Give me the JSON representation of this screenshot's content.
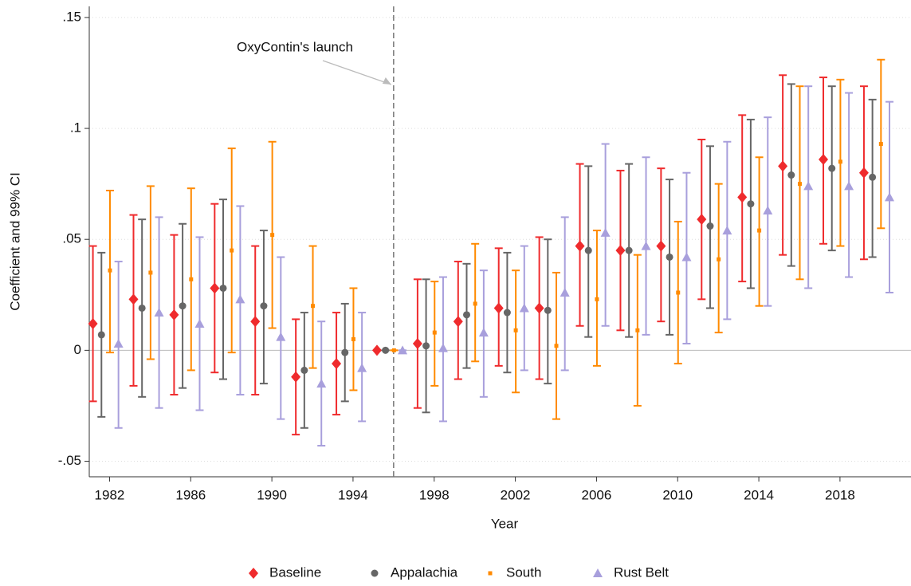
{
  "chart_data": {
    "type": "coefplot",
    "annotation": "OxyContin's launch",
    "annotation_x": 1996,
    "x_label": "Year",
    "y_label": "Coefficient and 99% CI",
    "x": [
      1982,
      1984,
      1986,
      1988,
      1990,
      1992,
      1994,
      1996,
      1998,
      2000,
      2002,
      2004,
      2006,
      2008,
      2010,
      2012,
      2014,
      2016,
      2018,
      2020
    ],
    "xlim": [
      1981,
      2021.5
    ],
    "xticks": [
      1982,
      1986,
      1990,
      1994,
      1998,
      2002,
      2006,
      2010,
      2014,
      2018
    ],
    "ylim": [
      -0.057,
      0.155
    ],
    "yticks": [
      {
        "value": -0.05,
        "label": "-.05"
      },
      0,
      {
        "value": 0.05,
        "label": ".05"
      },
      {
        "value": 0.1,
        "label": ".1"
      },
      {
        "value": 0.15,
        "label": ".15"
      }
    ],
    "grid": true,
    "legend": "bottom",
    "series": [
      {
        "name": "Baseline",
        "color": "#ef2b2d",
        "marker": "diamond",
        "values": [
          0.012,
          0.023,
          0.016,
          0.028,
          0.013,
          -0.012,
          -0.006,
          0,
          0.003,
          0.013,
          0.019,
          0.019,
          0.047,
          0.045,
          0.047,
          0.059,
          0.069,
          0.083,
          0.086,
          0.08
        ],
        "lower": [
          -0.023,
          -0.016,
          -0.02,
          -0.01,
          -0.02,
          -0.038,
          -0.029,
          0,
          -0.026,
          -0.013,
          -0.007,
          -0.013,
          0.011,
          0.009,
          0.013,
          0.023,
          0.031,
          0.043,
          0.048,
          0.041
        ],
        "upper": [
          0.047,
          0.061,
          0.052,
          0.066,
          0.047,
          0.014,
          0.017,
          0,
          0.032,
          0.04,
          0.046,
          0.051,
          0.084,
          0.081,
          0.082,
          0.095,
          0.106,
          0.124,
          0.123,
          0.119
        ]
      },
      {
        "name": "Appalachia",
        "color": "#666666",
        "marker": "circle",
        "values": [
          0.007,
          0.019,
          0.02,
          0.028,
          0.02,
          -0.009,
          -0.001,
          0,
          0.002,
          0.016,
          0.017,
          0.018,
          0.045,
          0.045,
          0.042,
          0.056,
          0.066,
          0.079,
          0.082,
          0.078
        ],
        "lower": [
          -0.03,
          -0.021,
          -0.017,
          -0.013,
          -0.015,
          -0.035,
          -0.023,
          0,
          -0.028,
          -0.008,
          -0.01,
          -0.015,
          0.006,
          0.006,
          0.007,
          0.019,
          0.028,
          0.038,
          0.045,
          0.042
        ],
        "upper": [
          0.044,
          0.059,
          0.057,
          0.068,
          0.054,
          0.017,
          0.021,
          0,
          0.032,
          0.039,
          0.044,
          0.05,
          0.083,
          0.084,
          0.077,
          0.092,
          0.104,
          0.12,
          0.119,
          0.113
        ]
      },
      {
        "name": "South",
        "color": "#ff8a00",
        "marker": "square",
        "values": [
          0.036,
          0.035,
          0.032,
          0.045,
          0.052,
          0.02,
          0.005,
          0,
          0.008,
          0.021,
          0.009,
          0.002,
          0.023,
          0.009,
          0.026,
          0.041,
          0.054,
          0.075,
          0.085,
          0.093
        ],
        "lower": [
          -0.001,
          -0.004,
          -0.009,
          -0.001,
          0.01,
          -0.008,
          -0.018,
          0,
          -0.016,
          -0.005,
          -0.019,
          -0.031,
          -0.007,
          -0.025,
          -0.006,
          0.008,
          0.02,
          0.032,
          0.047,
          0.055
        ],
        "upper": [
          0.072,
          0.074,
          0.073,
          0.091,
          0.094,
          0.047,
          0.028,
          0,
          0.031,
          0.048,
          0.036,
          0.035,
          0.054,
          0.043,
          0.058,
          0.075,
          0.087,
          0.119,
          0.122,
          0.131
        ]
      },
      {
        "name": "Rust Belt",
        "color": "#a89fdc",
        "marker": "triangle",
        "values": [
          0.003,
          0.017,
          0.012,
          0.023,
          0.006,
          -0.015,
          -0.008,
          0,
          0.001,
          0.008,
          0.019,
          0.026,
          0.053,
          0.047,
          0.042,
          0.054,
          0.063,
          0.074,
          0.074,
          0.069
        ],
        "lower": [
          -0.035,
          -0.026,
          -0.027,
          -0.02,
          -0.031,
          -0.043,
          -0.032,
          0,
          -0.032,
          -0.021,
          -0.009,
          -0.009,
          0.011,
          0.007,
          0.003,
          0.014,
          0.02,
          0.028,
          0.033,
          0.026
        ],
        "upper": [
          0.04,
          0.06,
          0.051,
          0.065,
          0.042,
          0.013,
          0.017,
          0,
          0.033,
          0.036,
          0.047,
          0.06,
          0.093,
          0.087,
          0.08,
          0.094,
          0.105,
          0.119,
          0.116,
          0.112
        ]
      }
    ]
  }
}
